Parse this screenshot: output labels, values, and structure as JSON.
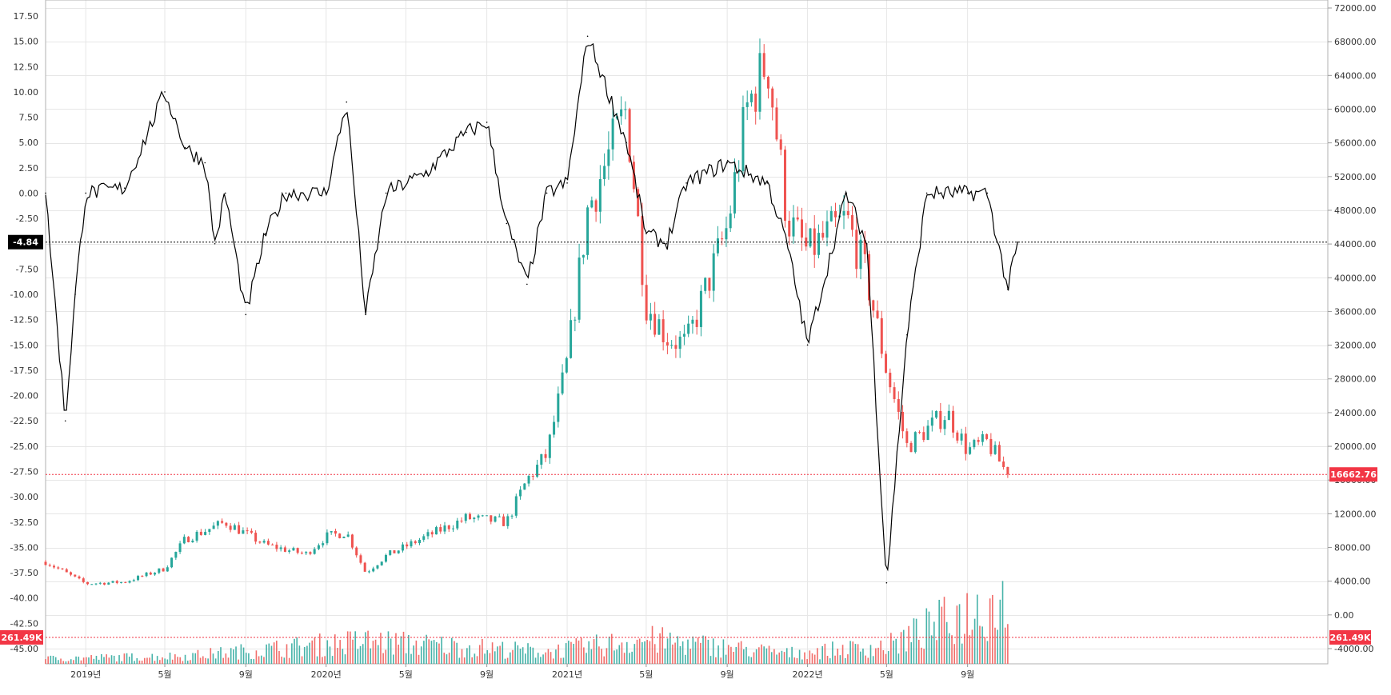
{
  "chart_data": {
    "type": "line",
    "left_axis": {
      "ticks": [
        "17.50",
        "15.00",
        "12.50",
        "10.00",
        "7.50",
        "5.00",
        "2.50",
        "0.00",
        "-2.50",
        "-5.00",
        "-7.50",
        "-10.00",
        "-12.50",
        "-15.00",
        "-17.50",
        "-20.00",
        "-22.50",
        "-25.00",
        "-27.50",
        "-30.00",
        "-32.50",
        "-35.00",
        "-37.50",
        "-40.00",
        "-42.50",
        "-45.00"
      ],
      "range": [
        -45,
        17.5
      ]
    },
    "right_axis": {
      "ticks": [
        "72000.00",
        "68000.00",
        "64000.00",
        "60000.00",
        "56000.00",
        "52000.00",
        "48000.00",
        "44000.00",
        "40000.00",
        "36000.00",
        "32000.00",
        "28000.00",
        "24000.00",
        "20000.00",
        "16000.00",
        "12000.00",
        "8000.00",
        "4000.00",
        "0.00",
        "-4000.00"
      ],
      "range": [
        -4000,
        72000
      ]
    },
    "x_axis": {
      "labels": [
        "2019년",
        "5월",
        "9월",
        "2020년",
        "5월",
        "9월",
        "2021년",
        "5월",
        "9월",
        "2022년",
        "5월",
        "9월"
      ]
    },
    "markers": {
      "oscillator_value": "-4.84",
      "price_value": "16662.76",
      "volume_value": "261.49K"
    },
    "price_series": {
      "name": "",
      "x": [
        "2018-11",
        "2019-01",
        "2019-03",
        "2019-05",
        "2019-06",
        "2019-08",
        "2019-10",
        "2019-12",
        "2020-01",
        "2020-02",
        "2020-03",
        "2020-04",
        "2020-06",
        "2020-08",
        "2020-10",
        "2020-11",
        "2020-12",
        "2021-01",
        "2021-02",
        "2021-04",
        "2021-05",
        "2021-06",
        "2021-07",
        "2021-09",
        "2021-10",
        "2021-11",
        "2021-12",
        "2022-01",
        "2022-03",
        "2022-04",
        "2022-05",
        "2022-06",
        "2022-07",
        "2022-08",
        "2022-09",
        "2022-10",
        "2022-11"
      ],
      "values": [
        6300,
        3700,
        3900,
        5500,
        9000,
        11000,
        8300,
        7200,
        9300,
        9800,
        5000,
        7000,
        9300,
        11500,
        11000,
        16000,
        19000,
        30000,
        48000,
        60000,
        37000,
        33000,
        32000,
        46000,
        60000,
        66000,
        47000,
        43000,
        47000,
        40000,
        29000,
        20000,
        22000,
        24000,
        19500,
        20500,
        16662.76
      ]
    },
    "oscillator_series": {
      "name": "",
      "x": [
        "2018-11",
        "2018-12",
        "2018-12b",
        "2019-01",
        "2019-03",
        "2019-05",
        "2019-06",
        "2019-07",
        "2019-07b",
        "2019-08",
        "2019-09",
        "2019-10",
        "2019-11",
        "2020-01",
        "2020-02",
        "2020-03",
        "2020-04",
        "2020-06",
        "2020-08",
        "2020-09",
        "2020-10",
        "2020-11",
        "2020-12",
        "2021-01",
        "2021-02",
        "2021-04",
        "2021-05",
        "2021-06",
        "2021-07",
        "2021-09",
        "2021-11",
        "2021-12",
        "2022-01",
        "2022-03",
        "2022-04",
        "2022-05",
        "2022-06",
        "2022-07",
        "2022-09",
        "2022-10",
        "2022-11",
        "2022-11b"
      ],
      "values": [
        0,
        -22.5,
        -10,
        0,
        0.5,
        10,
        4.5,
        3,
        -5,
        0,
        -12,
        -4,
        0,
        0,
        9,
        -12,
        0,
        2,
        6,
        7,
        -3,
        -9,
        0,
        1,
        15.5,
        5,
        -4,
        -5,
        1,
        3,
        1,
        -5,
        -15,
        0,
        -5,
        -38.5,
        -14,
        0,
        0,
        0,
        -9.5,
        -4.84
      ]
    },
    "volume_series": {
      "name": "",
      "x": [
        "2018-11",
        "2019-06",
        "2020-03",
        "2020-12",
        "2021-05",
        "2021-12",
        "2022-05",
        "2022-08",
        "2022-11"
      ],
      "values": [
        60,
        90,
        260,
        140,
        280,
        120,
        200,
        500,
        750
      ]
    },
    "colors": {
      "oscillator": "#000000",
      "candle_up": "#26a69a",
      "candle_down": "#ef5350",
      "marker_red": "#f23645",
      "oscillator_badge": "#000000",
      "grid": "#e6e6e6"
    },
    "grid": true
  }
}
